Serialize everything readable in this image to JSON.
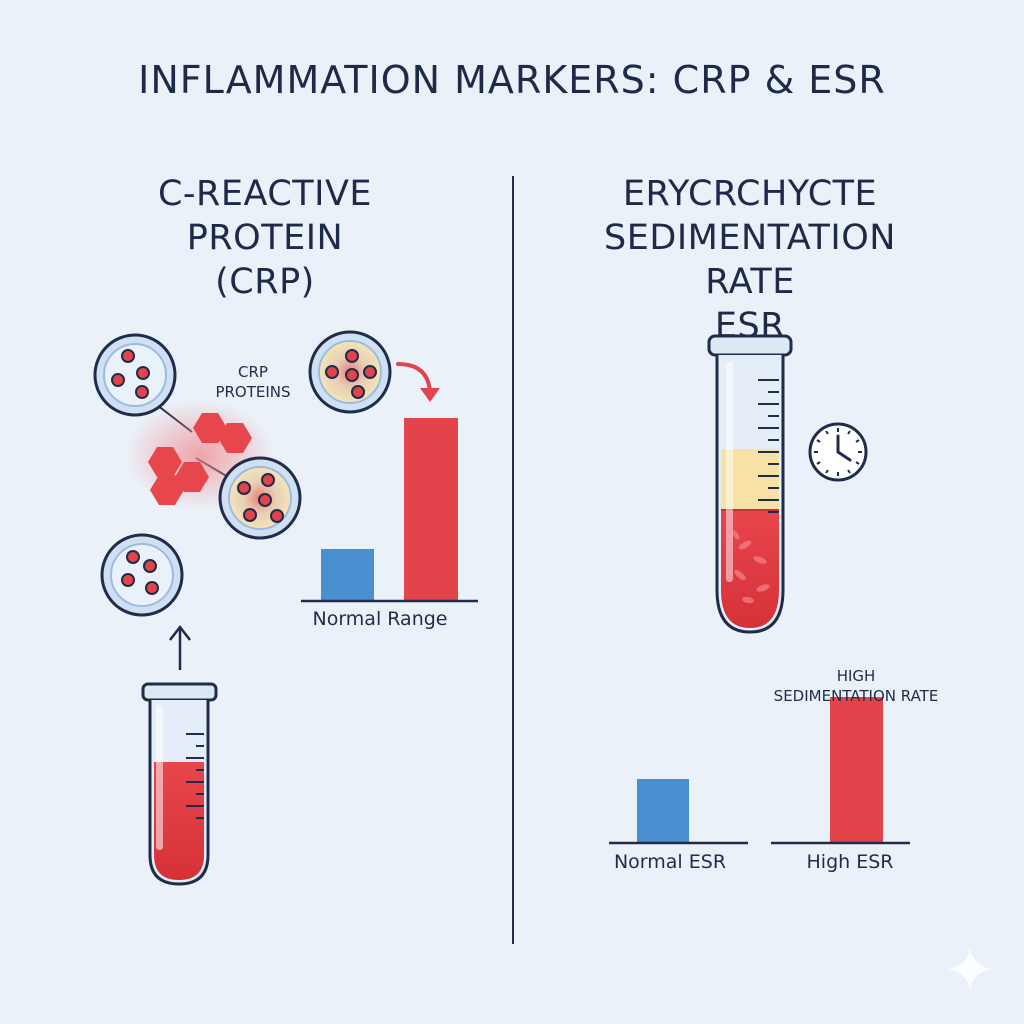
{
  "title": "INFLAMMATION MARKERS: CRP & ESR",
  "crp": {
    "heading_lines": [
      "C-REACTIVE",
      "PROTEIN",
      "(CRP)"
    ],
    "protein_label_lines": [
      "CRP",
      "PROTEINS"
    ],
    "chart_label": "Normal Range"
  },
  "esr": {
    "heading_lines": [
      "ERYCRCHYCTE",
      "SEDIMENTATION RATE",
      "ESR"
    ],
    "high_label_lines": [
      "HIGH",
      "SEDIMENTATION RATE"
    ],
    "normal_label": "Normal ESR",
    "high_label": "High ESR"
  },
  "colors": {
    "background": "#ebf1f9",
    "ink": "#1f2d4a",
    "blue_bar": "#4a8fd0",
    "red_bar": "#e3434a",
    "cell_fill": "#cfe0f2",
    "plasma": "#f6e2a4",
    "blood": "#e04048"
  },
  "icons": [
    "blood-cell-icon",
    "crp-hexagon-icon",
    "test-tube-icon",
    "clock-icon",
    "arrow-up-icon",
    "curved-arrow-icon",
    "sparkle-icon"
  ]
}
